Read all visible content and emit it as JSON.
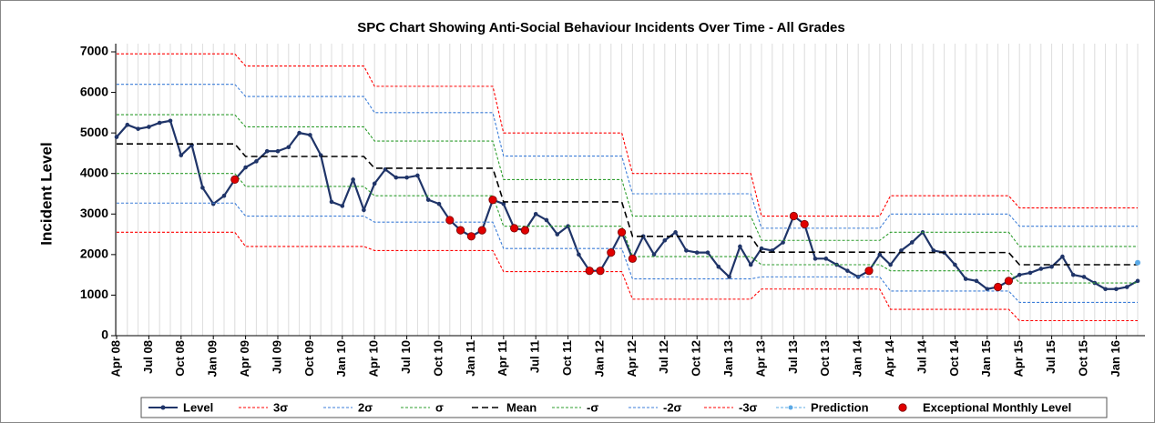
{
  "chart_data": {
    "type": "line",
    "title": "SPC Chart Showing Anti-Social Behaviour Incidents Over Time - All Grades",
    "y_label": "Incident  Level",
    "categories": [
      "Apr 08",
      null,
      null,
      "Jul 08",
      null,
      null,
      "Oct 08",
      null,
      null,
      "Jan 09",
      null,
      null,
      "Apr 09",
      null,
      null,
      "Jul 09",
      null,
      null,
      "Oct 09",
      null,
      null,
      "Jan 10",
      null,
      null,
      "Apr 10",
      null,
      null,
      "Jul 10",
      null,
      null,
      "Oct 10",
      null,
      null,
      "Jan 11",
      null,
      null,
      "Apr 11",
      null,
      null,
      "Jul 11",
      null,
      null,
      "Oct 11",
      null,
      null,
      "Jan 12",
      null,
      null,
      "Apr 12",
      null,
      null,
      "Jul 12",
      null,
      null,
      "Oct 12",
      null,
      null,
      "Jan 13",
      null,
      null,
      "Apr 13",
      null,
      null,
      "Jul 13",
      null,
      null,
      "Oct 13",
      null,
      null,
      "Jan 14",
      null,
      null,
      "Apr 14",
      null,
      null,
      "Jul 14",
      null,
      null,
      "Oct 14",
      null,
      null,
      "Jan 15",
      null,
      null,
      "Apr 15",
      null,
      null,
      "Jul 15",
      null,
      null,
      "Oct 15",
      null,
      null,
      "Jan 16",
      null,
      null
    ],
    "ylim": [
      0,
      7000
    ],
    "yticks": [
      0,
      1000,
      2000,
      3000,
      4000,
      5000,
      6000,
      7000
    ],
    "grid": true,
    "series": [
      {
        "name": "Level",
        "color": "#1f3468",
        "style": "line-marker",
        "values": [
          4900,
          5200,
          5100,
          5150,
          5250,
          5300,
          4450,
          4700,
          3650,
          3250,
          3450,
          3850,
          4150,
          4300,
          4550,
          4550,
          4650,
          5000,
          4950,
          4450,
          3300,
          3200,
          3850,
          3100,
          3750,
          4100,
          3900,
          3900,
          3950,
          3350,
          3250,
          2850,
          2600,
          2450,
          2600,
          3350,
          3250,
          2650,
          2600,
          3000,
          2850,
          2500,
          2700,
          2000,
          1600,
          1600,
          2050,
          2550,
          1900,
          2450,
          2000,
          2350,
          2550,
          2100,
          2050,
          2050,
          1700,
          1450,
          2200,
          1750,
          2150,
          2100,
          2300,
          2950,
          2750,
          1900,
          1900,
          1750,
          1600,
          1450,
          1600,
          2000,
          1750,
          2100,
          2300,
          2550,
          2100,
          2050,
          1750,
          1400,
          1350,
          1150,
          1200,
          1350,
          1500,
          1550,
          1650,
          1700,
          1950,
          1500,
          1450,
          1300,
          1150,
          1150,
          1200,
          1350
        ]
      },
      {
        "name": "3σ",
        "color": "#ff0000",
        "style": "dashed",
        "values": [
          6950,
          6950,
          6950,
          6950,
          6950,
          6950,
          6950,
          6950,
          6950,
          6950,
          6950,
          6950,
          6650,
          6650,
          6650,
          6650,
          6650,
          6650,
          6650,
          6650,
          6650,
          6650,
          6650,
          6650,
          6150,
          6150,
          6150,
          6150,
          6150,
          6150,
          6150,
          6150,
          6150,
          6150,
          6150,
          6150,
          5000,
          5000,
          5000,
          5000,
          5000,
          5000,
          5000,
          5000,
          5000,
          5000,
          5000,
          5000,
          4000,
          4000,
          4000,
          4000,
          4000,
          4000,
          4000,
          4000,
          4000,
          4000,
          4000,
          4000,
          2950,
          2950,
          2950,
          2950,
          2950,
          2950,
          2950,
          2950,
          2950,
          2950,
          2950,
          2950,
          3450,
          3450,
          3450,
          3450,
          3450,
          3450,
          3450,
          3450,
          3450,
          3450,
          3450,
          3450,
          3150,
          3150,
          3150,
          3150,
          3150,
          3150,
          3150,
          3150,
          3150,
          3150,
          3150,
          3150
        ]
      },
      {
        "name": "2σ",
        "color": "#3b7dd8",
        "style": "dashed",
        "values": [
          6200,
          6200,
          6200,
          6200,
          6200,
          6200,
          6200,
          6200,
          6200,
          6200,
          6200,
          6200,
          5900,
          5900,
          5900,
          5900,
          5900,
          5900,
          5900,
          5900,
          5900,
          5900,
          5900,
          5900,
          5500,
          5500,
          5500,
          5500,
          5500,
          5500,
          5500,
          5500,
          5500,
          5500,
          5500,
          5500,
          4430,
          4430,
          4430,
          4430,
          4430,
          4430,
          4430,
          4430,
          4430,
          4430,
          4430,
          4430,
          3500,
          3500,
          3500,
          3500,
          3500,
          3500,
          3500,
          3500,
          3500,
          3500,
          3500,
          3500,
          2650,
          2650,
          2650,
          2650,
          2650,
          2650,
          2650,
          2650,
          2650,
          2650,
          2650,
          2650,
          3000,
          3000,
          3000,
          3000,
          3000,
          3000,
          3000,
          3000,
          3000,
          3000,
          3000,
          3000,
          2700,
          2700,
          2700,
          2700,
          2700,
          2700,
          2700,
          2700,
          2700,
          2700,
          2700,
          2700
        ]
      },
      {
        "name": "σ",
        "color": "#2e9e2e",
        "style": "dashed",
        "values": [
          5450,
          5450,
          5450,
          5450,
          5450,
          5450,
          5450,
          5450,
          5450,
          5450,
          5450,
          5450,
          5150,
          5150,
          5150,
          5150,
          5150,
          5150,
          5150,
          5150,
          5150,
          5150,
          5150,
          5150,
          4800,
          4800,
          4800,
          4800,
          4800,
          4800,
          4800,
          4800,
          4800,
          4800,
          4800,
          4800,
          3850,
          3850,
          3850,
          3850,
          3850,
          3850,
          3850,
          3850,
          3850,
          3850,
          3850,
          3850,
          2950,
          2950,
          2950,
          2950,
          2950,
          2950,
          2950,
          2950,
          2950,
          2950,
          2950,
          2950,
          2350,
          2350,
          2350,
          2350,
          2350,
          2350,
          2350,
          2350,
          2350,
          2350,
          2350,
          2350,
          2550,
          2550,
          2550,
          2550,
          2550,
          2550,
          2550,
          2550,
          2550,
          2550,
          2550,
          2550,
          2200,
          2200,
          2200,
          2200,
          2200,
          2200,
          2200,
          2200,
          2200,
          2200,
          2200,
          2200
        ]
      },
      {
        "name": "Mean",
        "color": "#000000",
        "style": "dashed-bold",
        "values": [
          4730,
          4730,
          4730,
          4730,
          4730,
          4730,
          4730,
          4730,
          4730,
          4730,
          4730,
          4730,
          4420,
          4420,
          4420,
          4420,
          4420,
          4420,
          4420,
          4420,
          4420,
          4420,
          4420,
          4420,
          4130,
          4130,
          4130,
          4130,
          4130,
          4130,
          4130,
          4130,
          4130,
          4130,
          4130,
          4130,
          3300,
          3300,
          3300,
          3300,
          3300,
          3300,
          3300,
          3300,
          3300,
          3300,
          3300,
          3300,
          2450,
          2450,
          2450,
          2450,
          2450,
          2450,
          2450,
          2450,
          2450,
          2450,
          2450,
          2450,
          2060,
          2060,
          2060,
          2060,
          2060,
          2060,
          2060,
          2060,
          2060,
          2060,
          2060,
          2060,
          2050,
          2050,
          2050,
          2050,
          2050,
          2050,
          2050,
          2050,
          2050,
          2050,
          2050,
          2050,
          1750,
          1750,
          1750,
          1750,
          1750,
          1750,
          1750,
          1750,
          1750,
          1750,
          1750,
          1750
        ]
      },
      {
        "name": "-σ",
        "color": "#2e9e2e",
        "style": "dashed",
        "values": [
          4000,
          4000,
          4000,
          4000,
          4000,
          4000,
          4000,
          4000,
          4000,
          4000,
          4000,
          4000,
          3680,
          3680,
          3680,
          3680,
          3680,
          3680,
          3680,
          3680,
          3680,
          3680,
          3680,
          3680,
          3450,
          3450,
          3450,
          3450,
          3450,
          3450,
          3450,
          3450,
          3450,
          3450,
          3450,
          3450,
          2700,
          2700,
          2700,
          2700,
          2700,
          2700,
          2700,
          2700,
          2700,
          2700,
          2700,
          2700,
          1950,
          1950,
          1950,
          1950,
          1950,
          1950,
          1950,
          1950,
          1950,
          1950,
          1950,
          1950,
          1750,
          1750,
          1750,
          1750,
          1750,
          1750,
          1750,
          1750,
          1750,
          1750,
          1750,
          1750,
          1600,
          1600,
          1600,
          1600,
          1600,
          1600,
          1600,
          1600,
          1600,
          1600,
          1600,
          1600,
          1300,
          1300,
          1300,
          1300,
          1300,
          1300,
          1300,
          1300,
          1300,
          1300,
          1300,
          1300
        ]
      },
      {
        "name": "-2σ",
        "color": "#3b7dd8",
        "style": "dashed",
        "values": [
          3270,
          3270,
          3270,
          3270,
          3270,
          3270,
          3270,
          3270,
          3270,
          3270,
          3270,
          3270,
          2950,
          2950,
          2950,
          2950,
          2950,
          2950,
          2950,
          2950,
          2950,
          2950,
          2950,
          2950,
          2800,
          2800,
          2800,
          2800,
          2800,
          2800,
          2800,
          2800,
          2800,
          2800,
          2800,
          2800,
          2150,
          2150,
          2150,
          2150,
          2150,
          2150,
          2150,
          2150,
          2150,
          2150,
          2150,
          2150,
          1400,
          1400,
          1400,
          1400,
          1400,
          1400,
          1400,
          1400,
          1400,
          1400,
          1400,
          1400,
          1450,
          1450,
          1450,
          1450,
          1450,
          1450,
          1450,
          1450,
          1450,
          1450,
          1450,
          1450,
          1100,
          1100,
          1100,
          1100,
          1100,
          1100,
          1100,
          1100,
          1100,
          1100,
          1100,
          1100,
          820,
          820,
          820,
          820,
          820,
          820,
          820,
          820,
          820,
          820,
          820,
          820
        ]
      },
      {
        "name": "-3σ",
        "color": "#ff0000",
        "style": "dashed",
        "values": [
          2550,
          2550,
          2550,
          2550,
          2550,
          2550,
          2550,
          2550,
          2550,
          2550,
          2550,
          2550,
          2200,
          2200,
          2200,
          2200,
          2200,
          2200,
          2200,
          2200,
          2200,
          2200,
          2200,
          2200,
          2100,
          2100,
          2100,
          2100,
          2100,
          2100,
          2100,
          2100,
          2100,
          2100,
          2100,
          2100,
          1580,
          1580,
          1580,
          1580,
          1580,
          1580,
          1580,
          1580,
          1580,
          1580,
          1580,
          1580,
          900,
          900,
          900,
          900,
          900,
          900,
          900,
          900,
          900,
          900,
          900,
          900,
          1150,
          1150,
          1150,
          1150,
          1150,
          1150,
          1150,
          1150,
          1150,
          1150,
          1150,
          1150,
          650,
          650,
          650,
          650,
          650,
          650,
          650,
          650,
          650,
          650,
          650,
          650,
          370,
          370,
          370,
          370,
          370,
          370,
          370,
          370,
          370,
          370,
          370,
          370
        ]
      },
      {
        "name": "Prediction",
        "color": "#5aa9e6",
        "style": "marker-dashed",
        "values": [
          null,
          null,
          null,
          null,
          null,
          null,
          null,
          null,
          null,
          null,
          null,
          null,
          null,
          null,
          null,
          null,
          null,
          null,
          null,
          null,
          null,
          null,
          null,
          null,
          null,
          null,
          null,
          null,
          null,
          null,
          null,
          null,
          null,
          null,
          null,
          null,
          null,
          null,
          null,
          null,
          null,
          null,
          null,
          null,
          null,
          null,
          null,
          null,
          null,
          null,
          null,
          null,
          null,
          null,
          null,
          null,
          null,
          null,
          null,
          null,
          null,
          null,
          null,
          null,
          null,
          null,
          null,
          null,
          null,
          null,
          null,
          null,
          null,
          null,
          null,
          null,
          null,
          null,
          null,
          null,
          null,
          null,
          null,
          null,
          null,
          null,
          null,
          null,
          null,
          null,
          null,
          null,
          null,
          null,
          null,
          1800
        ]
      },
      {
        "name": "Exceptional Monthly Level",
        "color": "#e00000",
        "style": "marker",
        "values": [
          null,
          null,
          null,
          null,
          null,
          null,
          null,
          null,
          null,
          null,
          null,
          3850,
          null,
          null,
          null,
          null,
          null,
          null,
          null,
          null,
          null,
          null,
          null,
          null,
          null,
          null,
          null,
          null,
          null,
          null,
          null,
          2850,
          2600,
          2450,
          2600,
          3350,
          null,
          2650,
          2600,
          null,
          null,
          null,
          null,
          null,
          1600,
          1600,
          2050,
          2550,
          1900,
          null,
          null,
          null,
          null,
          null,
          null,
          null,
          null,
          null,
          null,
          null,
          null,
          null,
          null,
          2950,
          2750,
          null,
          null,
          null,
          null,
          null,
          1600,
          null,
          null,
          null,
          null,
          null,
          null,
          null,
          null,
          null,
          null,
          null,
          1200,
          1350,
          null,
          null,
          null,
          null,
          null,
          null,
          null,
          null,
          null,
          null,
          null,
          null
        ]
      }
    ]
  }
}
